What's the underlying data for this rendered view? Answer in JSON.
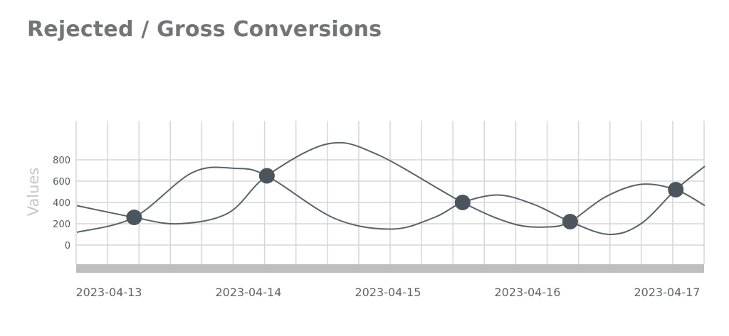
{
  "title": "Rejected / Gross Conversions",
  "chart_data": {
    "type": "line",
    "title": "Rejected / Gross Conversions",
    "xlabel": "",
    "ylabel": "Values",
    "xlim": [
      "2023-04-12T18:30",
      "2023-04-17T06:30"
    ],
    "ylim": [
      -150,
      1170
    ],
    "yticks": [
      0,
      200,
      400,
      600,
      800
    ],
    "xtick_labels": [
      "2023-04-13",
      "2023-04-14",
      "2023-04-15",
      "2023-04-16",
      "2023-04-17"
    ],
    "grid": true,
    "line_color": "#5a626a",
    "marker_color": "#4a555e",
    "series": [
      {
        "points": [
          [
            "2023-04-12T18:30",
            120
          ],
          [
            "2023-04-13T04:20",
            260
          ],
          [
            "2023-04-13T14:20",
            680
          ],
          [
            "2023-04-13T21:40",
            720
          ],
          [
            "2023-04-14T03:10",
            650
          ],
          [
            "2023-04-14T14:50",
            250
          ],
          [
            "2023-04-15T00:40",
            150
          ],
          [
            "2023-04-15T08:00",
            260
          ],
          [
            "2023-04-15T12:50",
            400
          ],
          [
            "2023-04-15T19:00",
            470
          ],
          [
            "2023-04-16T01:10",
            380
          ],
          [
            "2023-04-16T07:20",
            220
          ],
          [
            "2023-04-16T14:00",
            100
          ],
          [
            "2023-04-16T19:30",
            200
          ],
          [
            "2023-04-17T01:30",
            520
          ],
          [
            "2023-04-17T06:30",
            740
          ]
        ]
      },
      {
        "points": [
          [
            "2023-04-12T18:30",
            370
          ],
          [
            "2023-04-13T04:20",
            260
          ],
          [
            "2023-04-13T11:50",
            200
          ],
          [
            "2023-04-13T20:30",
            300
          ],
          [
            "2023-04-14T03:10",
            650
          ],
          [
            "2023-04-14T13:40",
            950
          ],
          [
            "2023-04-14T22:10",
            850
          ],
          [
            "2023-04-15T12:50",
            400
          ],
          [
            "2023-04-15T21:30",
            200
          ],
          [
            "2023-04-16T03:30",
            170
          ],
          [
            "2023-04-16T07:20",
            220
          ],
          [
            "2023-04-16T13:20",
            450
          ],
          [
            "2023-04-16T19:30",
            570
          ],
          [
            "2023-04-17T01:30",
            520
          ],
          [
            "2023-04-17T06:30",
            370
          ]
        ]
      }
    ],
    "markers": [
      [
        "2023-04-13T04:20",
        260
      ],
      [
        "2023-04-14T03:10",
        650
      ],
      [
        "2023-04-15T12:50",
        400
      ],
      [
        "2023-04-16T07:20",
        220
      ],
      [
        "2023-04-17T01:30",
        520
      ]
    ]
  }
}
